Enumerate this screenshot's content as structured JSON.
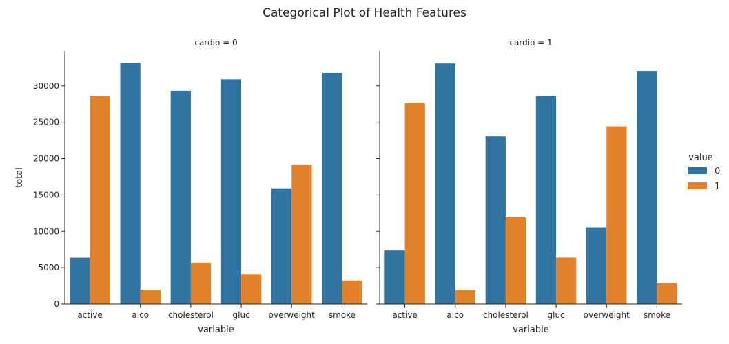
{
  "chart_data": {
    "type": "bar",
    "title": "Categorical Plot of Health Features",
    "categories": [
      "active",
      "alco",
      "cholesterol",
      "gluc",
      "overweight",
      "smoke"
    ],
    "xlabel": "variable",
    "ylabel": "total",
    "ylim": [
      0,
      34800
    ],
    "yticks": [
      0,
      5000,
      10000,
      15000,
      20000,
      25000,
      30000
    ],
    "ytick_labels": [
      "0",
      "5000",
      "10000",
      "15000",
      "20000",
      "25000",
      "30000"
    ],
    "grid": false,
    "legend": {
      "title": "value",
      "placement": "right",
      "entries": [
        {
          "label": "0",
          "color": "#3274a1"
        },
        {
          "label": "1",
          "color": "#e1812c"
        }
      ]
    },
    "panels": [
      {
        "title": "cardio = 0",
        "series": [
          {
            "name": "0",
            "color": "#3274a1",
            "values": [
              6378,
              33156,
              29330,
              30894,
              15915,
              31781
            ]
          },
          {
            "name": "1",
            "color": "#e1812c",
            "values": [
              28643,
              1969,
              5691,
              4127,
              19106,
              3240
            ]
          }
        ]
      },
      {
        "title": "cardio = 1",
        "series": [
          {
            "name": "0",
            "color": "#3274a1",
            "values": [
              7361,
              33080,
              23055,
              28585,
              10539,
              32050
            ]
          },
          {
            "name": "1",
            "color": "#e1812c",
            "values": [
              27618,
              1899,
              11924,
              6394,
              24440,
              2929
            ]
          }
        ]
      }
    ]
  }
}
